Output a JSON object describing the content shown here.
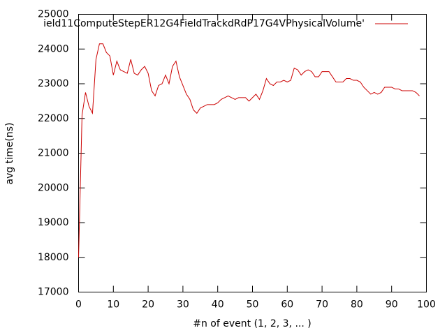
{
  "chart_data": {
    "type": "line",
    "xlabel": "#n of event (1, 2, 3, ... )",
    "ylabel": "avg time(ns)",
    "x": [
      0,
      1,
      2,
      3,
      4,
      5,
      6,
      7,
      8,
      9,
      10,
      11,
      12,
      13,
      14,
      15,
      16,
      17,
      18,
      19,
      20,
      21,
      22,
      23,
      24,
      25,
      26,
      27,
      28,
      29,
      30,
      31,
      32,
      33,
      34,
      35,
      36,
      37,
      38,
      39,
      40,
      41,
      42,
      43,
      44,
      45,
      46,
      47,
      48,
      49,
      50,
      51,
      52,
      53,
      54,
      55,
      56,
      57,
      58,
      59,
      60,
      61,
      62,
      63,
      64,
      65,
      66,
      67,
      68,
      69,
      70,
      71,
      72,
      73,
      74,
      75,
      76,
      77,
      78,
      79,
      80,
      81,
      82,
      83,
      84,
      85,
      86,
      87,
      88,
      89,
      90,
      91,
      92,
      93,
      94,
      95,
      96,
      97,
      98
    ],
    "series": [
      {
        "name": "ield11ComputeStepER12G4FieldTrackdRdP17G4VPhysicalVolume'",
        "color": "#cc0000",
        "values": [
          18000,
          22100,
          22750,
          22350,
          22150,
          23700,
          24150,
          24150,
          23900,
          23800,
          23250,
          23650,
          23400,
          23350,
          23300,
          23700,
          23300,
          23250,
          23400,
          23500,
          23300,
          22800,
          22650,
          22950,
          23000,
          23250,
          23000,
          23500,
          23650,
          23200,
          22950,
          22700,
          22550,
          22250,
          22150,
          22300,
          22350,
          22400,
          22400,
          22400,
          22450,
          22550,
          22600,
          22650,
          22600,
          22550,
          22600,
          22600,
          22600,
          22500,
          22600,
          22700,
          22550,
          22800,
          23150,
          23000,
          22950,
          23050,
          23050,
          23100,
          23050,
          23100,
          23450,
          23400,
          23250,
          23350,
          23400,
          23350,
          23200,
          23200,
          23350,
          23350,
          23350,
          23200,
          23050,
          23050,
          23050,
          23150,
          23150,
          23100,
          23100,
          23050,
          22900,
          22800,
          22700,
          22750,
          22700,
          22750,
          22900,
          22900,
          22900,
          22850,
          22850,
          22800,
          22800,
          22800,
          22800,
          22750,
          22650
        ]
      }
    ],
    "xlim": [
      0,
      100
    ],
    "xticks": [
      0,
      10,
      20,
      30,
      40,
      50,
      60,
      70,
      80,
      90,
      100
    ],
    "ylim": [
      17000,
      25000
    ],
    "yticks": [
      17000,
      18000,
      19000,
      20000,
      21000,
      22000,
      23000,
      24000,
      25000
    ],
    "grid": false,
    "legend": "top-right"
  }
}
